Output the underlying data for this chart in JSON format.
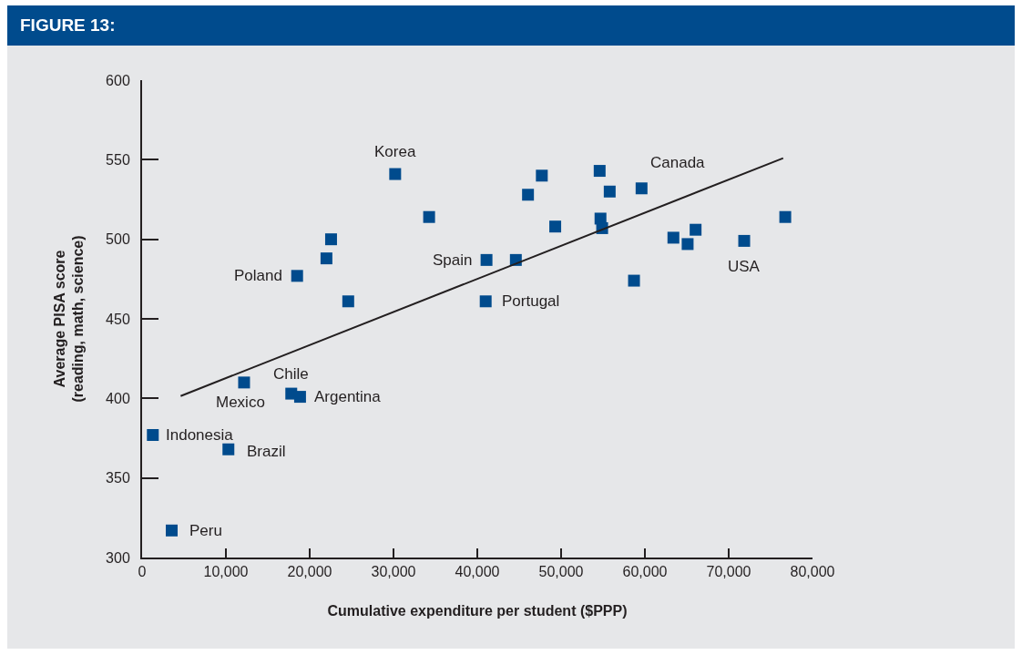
{
  "chart_data": {
    "type": "scatter",
    "title": "FIGURE 13:",
    "xlabel": "Cumulative expenditure per student ($PPP)",
    "ylabel": "Average PISA score\n(reading, math, science)",
    "xlim": [
      0,
      80000
    ],
    "ylim": [
      300,
      600
    ],
    "xticks": [
      0,
      {
        "value": 10000,
        "label": "10,000"
      },
      {
        "value": 20000,
        "label": "20,000"
      },
      {
        "value": 30000,
        "label": "30,000"
      },
      {
        "value": 40000,
        "label": "40,000"
      },
      {
        "value": 50000,
        "label": "50,000"
      },
      {
        "value": 60000,
        "label": "60,000"
      },
      {
        "value": 70000,
        "label": "70,000"
      },
      {
        "value": 80000,
        "label": "80,000"
      }
    ],
    "yticks": [
      300,
      350,
      400,
      450,
      500,
      550,
      600
    ],
    "grid": false,
    "series": [
      {
        "marker": "square",
        "color": "#004b8d",
        "x": [
          30200,
          34250,
          22550,
          22000,
          18500,
          24600,
          41100,
          41000,
          44600,
          47700,
          46050,
          54600,
          55800,
          59600,
          49300,
          54700,
          54900,
          58700,
          63400,
          65100,
          66050,
          71850,
          76750,
          12170,
          17800,
          18850,
          1280,
          10300,
          3530
        ],
        "values": [
          541,
          514,
          500,
          488,
          477,
          461,
          487,
          461,
          487,
          540,
          528,
          543,
          530,
          532,
          508,
          513,
          507,
          474,
          501,
          497,
          506,
          499,
          514,
          410,
          403,
          401,
          377,
          368,
          317
        ]
      },
      {
        "type": "line",
        "marker": "none",
        "color": "#231f20",
        "x": [
          4600,
          76500
        ],
        "values": [
          401.5,
          551
        ]
      }
    ],
    "annotations": [
      {
        "text": "Korea",
        "x": 30200,
        "y": 541
      },
      {
        "text": "Canada",
        "x": 59600,
        "y": 532
      },
      {
        "text": "Spain",
        "x": 41100,
        "y": 487
      },
      {
        "text": "Poland",
        "x": 18500,
        "y": 477
      },
      {
        "text": "Portugal",
        "x": 41000,
        "y": 461
      },
      {
        "text": "USA",
        "x": 71850,
        "y": 499
      },
      {
        "text": "Chile",
        "x": 17800,
        "y": 403
      },
      {
        "text": "Mexico",
        "x": 12170,
        "y": 410
      },
      {
        "text": "Argentina",
        "x": 18850,
        "y": 401
      },
      {
        "text": "Indonesia",
        "x": 1280,
        "y": 377
      },
      {
        "text": "Brazil",
        "x": 10300,
        "y": 368
      },
      {
        "text": "Peru",
        "x": 3530,
        "y": 317
      }
    ]
  }
}
